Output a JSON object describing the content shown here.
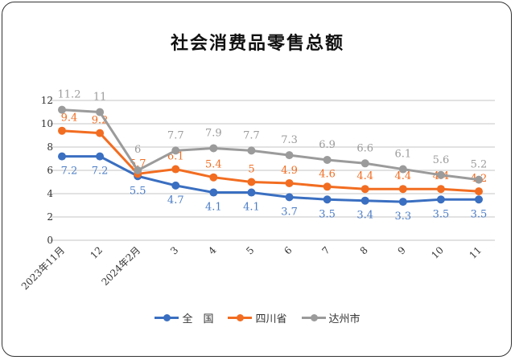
{
  "chart_data": {
    "type": "line",
    "title": "社会消费品零售总额",
    "categories": [
      "2023年11月",
      "12",
      "2024年2月",
      "3",
      "4",
      "5",
      "6",
      "7",
      "8",
      "9",
      "10",
      "11"
    ],
    "ylim": [
      0,
      12
    ],
    "yticks": [
      0,
      2,
      4,
      6,
      8,
      10,
      12
    ],
    "grid": true,
    "legend_position": "bottom",
    "series": [
      {
        "name": "全　国",
        "color": "#3a6fc1",
        "values": [
          7.2,
          7.2,
          5.5,
          4.7,
          4.1,
          4.1,
          3.7,
          3.5,
          3.4,
          3.3,
          3.5,
          3.5
        ]
      },
      {
        "name": "四川省",
        "color": "#f26d21",
        "values": [
          9.4,
          9.2,
          5.7,
          6.1,
          5.4,
          5,
          4.9,
          4.6,
          4.4,
          4.4,
          4.4,
          4.2
        ]
      },
      {
        "name": "达州市",
        "color": "#9b9b9b",
        "values": [
          11.2,
          11,
          6,
          7.7,
          7.9,
          7.7,
          7.3,
          6.9,
          6.6,
          6.1,
          5.6,
          5.2
        ]
      }
    ]
  }
}
